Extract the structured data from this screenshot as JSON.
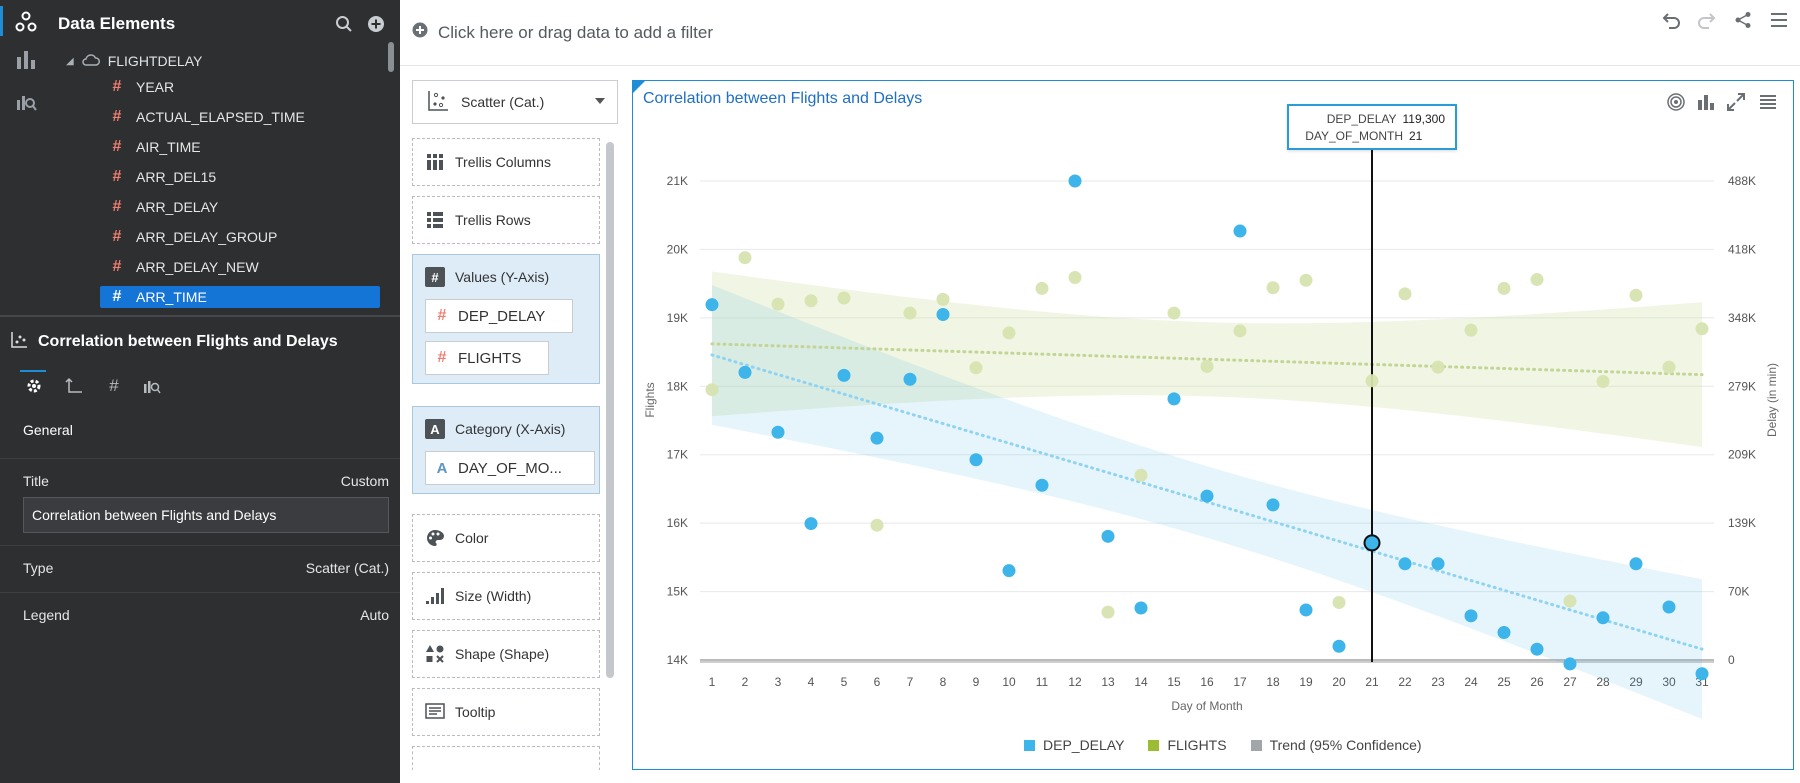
{
  "data_elements": {
    "title": "Data Elements",
    "root": "FLIGHTDELAY",
    "items": [
      "YEAR",
      "ACTUAL_ELAPSED_TIME",
      "AIR_TIME",
      "ARR_DEL15",
      "ARR_DELAY",
      "ARR_DELAY_GROUP",
      "ARR_DELAY_NEW",
      "ARR_TIME"
    ],
    "selected": "ARR_TIME"
  },
  "properties": {
    "title": "Correlation between Flights and Delays",
    "section": "General",
    "rows": [
      {
        "label": "Title",
        "value": "Custom"
      },
      {
        "label": "Type",
        "value": "Scatter (Cat.)"
      },
      {
        "label": "Legend",
        "value": "Auto"
      }
    ],
    "title_input_value": "Correlation between Flights and Delays"
  },
  "filter_bar": {
    "add_filter": "Click here or drag data to add a filter"
  },
  "grammar": {
    "viz_type": "Scatter (Cat.)",
    "zones": {
      "trellis_columns": "Trellis Columns",
      "trellis_rows": "Trellis Rows",
      "values": "Values (Y-Axis)",
      "values_items": [
        "DEP_DELAY",
        "FLIGHTS"
      ],
      "category": "Category (X-Axis)",
      "category_items": [
        "DAY_OF_MO..."
      ],
      "color": "Color",
      "size": "Size (Width)",
      "shape": "Shape (Shape)",
      "tooltip": "Tooltip"
    }
  },
  "colors": {
    "dep_delay": "#3db4ea",
    "flights": "#d7e3b0",
    "trend": "#a2a6aa",
    "accent": "#1f8dd6"
  },
  "tooltip": {
    "rows": [
      {
        "k": "DEP_DELAY",
        "v": "119,300"
      },
      {
        "k": "DAY_OF_MONTH",
        "v": "21"
      }
    ]
  },
  "chart_data": {
    "type": "scatter",
    "title": "Correlation between Flights and Delays",
    "xlabel": "Day of Month",
    "ylabel": "Flights",
    "y2label": "Delay (in min)",
    "x": [
      1,
      2,
      3,
      4,
      5,
      6,
      7,
      8,
      9,
      10,
      11,
      12,
      13,
      14,
      15,
      16,
      17,
      18,
      19,
      20,
      21,
      22,
      23,
      24,
      25,
      26,
      27,
      28,
      29,
      30,
      31
    ],
    "y_ticks": [
      "21K",
      "20K",
      "19K",
      "18K",
      "17K",
      "16K",
      "15K",
      "14K"
    ],
    "y2_ticks": [
      "488K",
      "418K",
      "348K",
      "279K",
      "209K",
      "139K",
      "70K",
      "0"
    ],
    "ylim": [
      14000,
      21000
    ],
    "y2lim": [
      0,
      488000
    ],
    "series": [
      {
        "name": "DEP_DELAY",
        "axis": "y2",
        "values": [
          362000,
          293000,
          232000,
          139000,
          290000,
          226000,
          286000,
          352000,
          204000,
          91000,
          178000,
          488000,
          126000,
          53000,
          266000,
          167000,
          437000,
          158000,
          51000,
          14000,
          119300,
          98000,
          98000,
          45000,
          28000,
          11000,
          -4000,
          43000,
          98000,
          54000,
          -14000
        ]
      },
      {
        "name": "FLIGHTS",
        "axis": "y",
        "values": [
          17950,
          19880,
          19200,
          19250,
          19290,
          15970,
          19070,
          19270,
          18270,
          18780,
          19430,
          19590,
          14700,
          16700,
          19070,
          18290,
          18810,
          19440,
          19550,
          14840,
          18080,
          19350,
          18280,
          18820,
          19430,
          19560,
          14860,
          18070,
          19330,
          18280,
          18840
        ]
      }
    ],
    "trend_label": "Trend (95% Confidence)",
    "highlight_x": 21
  }
}
